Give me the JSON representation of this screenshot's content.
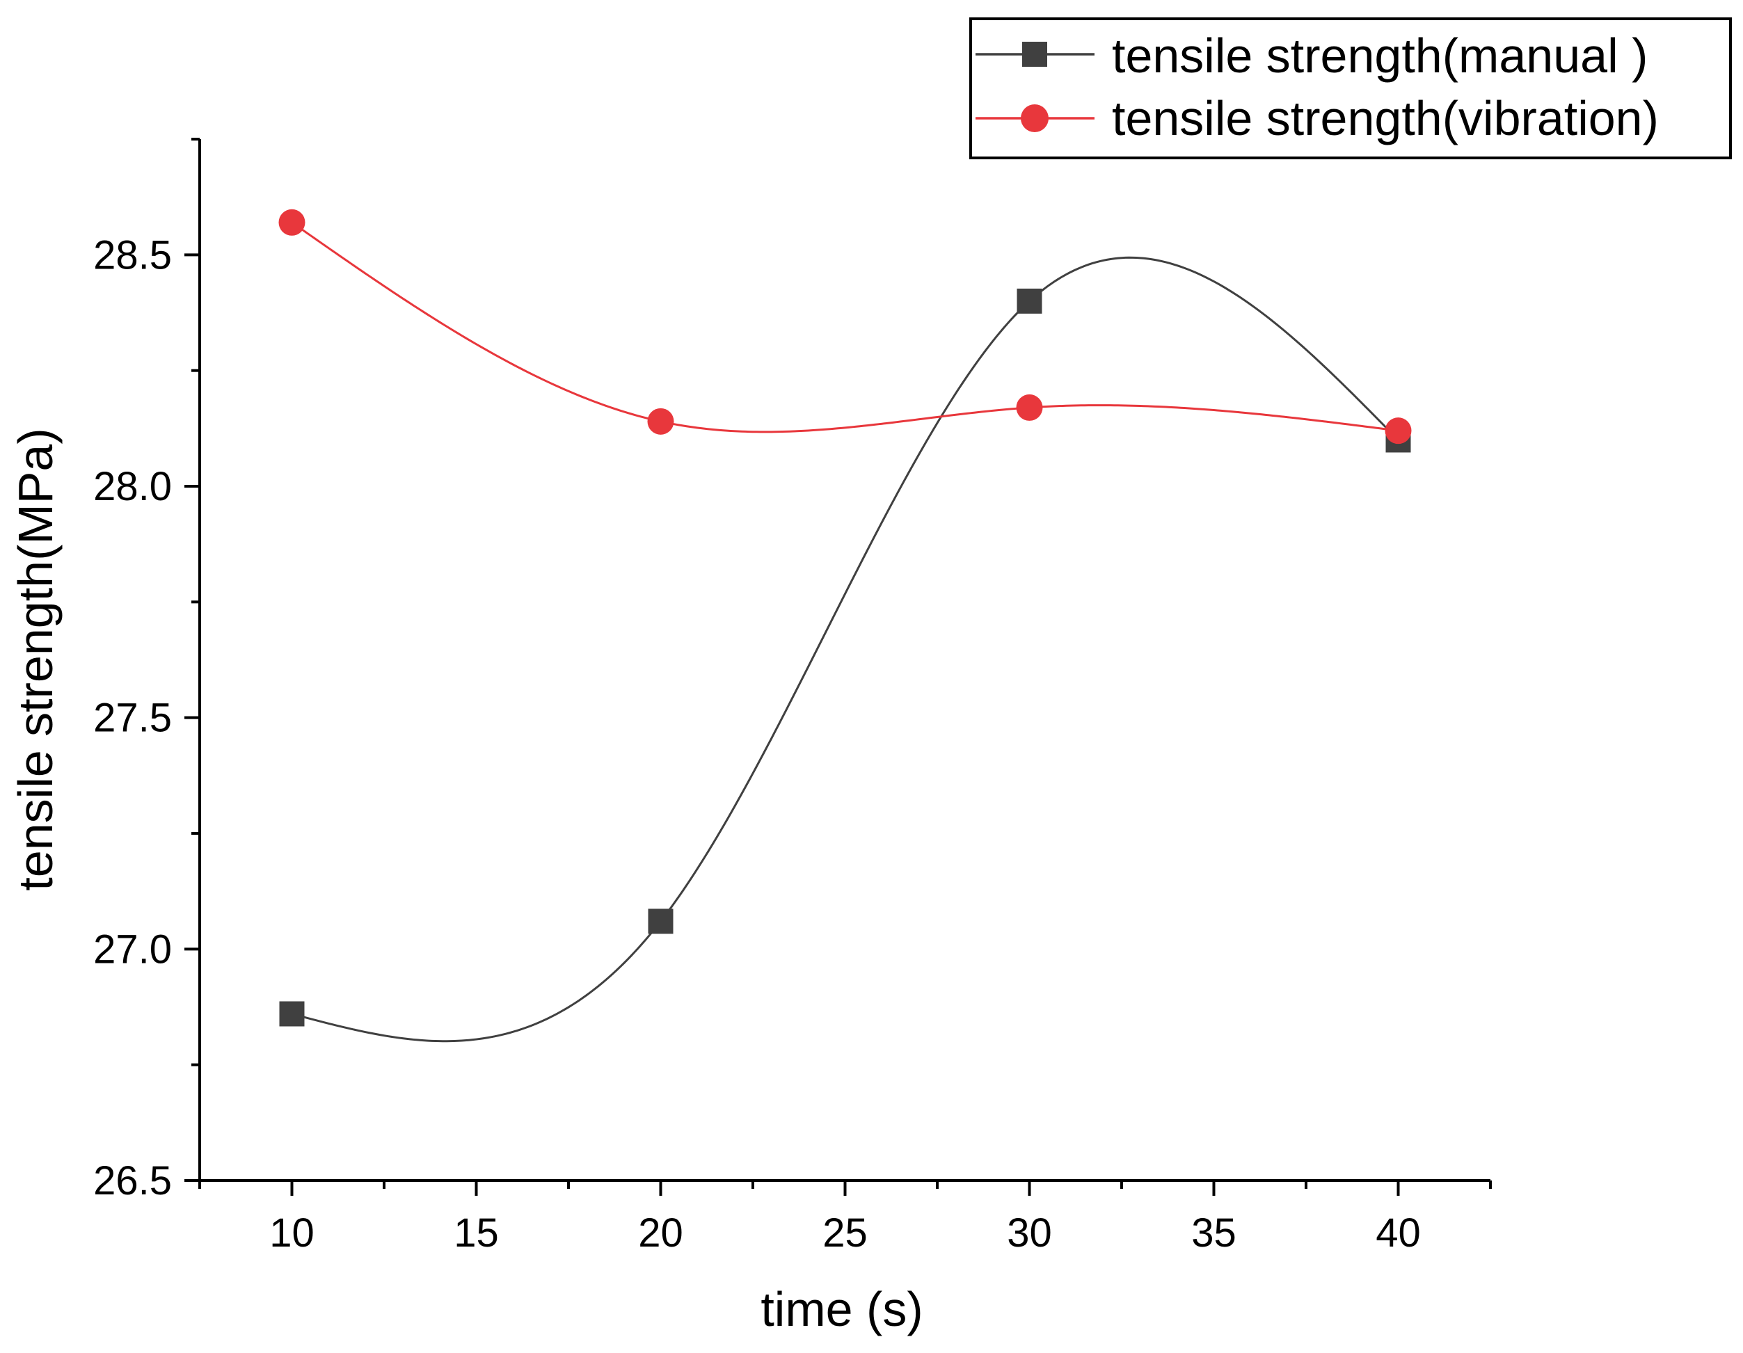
{
  "chart_data": {
    "type": "line",
    "title": "",
    "xlabel": "time (s)",
    "ylabel": "tensile strength(MPa)",
    "x": [
      10,
      20,
      30,
      40
    ],
    "xlim": [
      7.5,
      42.5
    ],
    "ylim": [
      26.5,
      28.75
    ],
    "xticks": [
      10,
      15,
      20,
      25,
      30,
      35,
      40
    ],
    "xtick_labels": [
      "10",
      "15",
      "20",
      "25",
      "30",
      "35",
      "40"
    ],
    "yticks": [
      26.5,
      27.0,
      27.5,
      28.0,
      28.5
    ],
    "ytick_labels": [
      "26.5",
      "27.0",
      "27.5",
      "28.0",
      "28.5"
    ],
    "grid": false,
    "legend_position": "top-right",
    "series": [
      {
        "name": "tensile strength(manual )",
        "color": "#404040",
        "marker": "square",
        "values": [
          26.86,
          27.06,
          28.4,
          28.1
        ]
      },
      {
        "name": "tensile strength(vibration)",
        "color": "#e8373c",
        "marker": "circle",
        "values": [
          28.57,
          28.14,
          28.17,
          28.12
        ]
      }
    ]
  }
}
